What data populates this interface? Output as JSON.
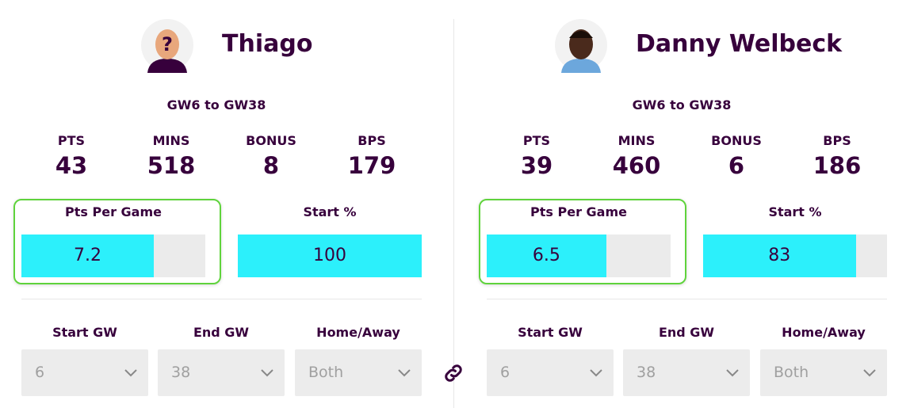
{
  "players": [
    {
      "name": "Thiago",
      "range": "GW6 to GW38",
      "stats": [
        {
          "label": "PTS",
          "value": 43
        },
        {
          "label": "MINS",
          "value": 518
        },
        {
          "label": "BONUS",
          "value": 8
        },
        {
          "label": "BPS",
          "value": 179
        }
      ],
      "bars": [
        {
          "label": "Pts Per Game",
          "value": 7.2,
          "range": [
            0,
            10
          ],
          "highlighted": true
        },
        {
          "label": "Start %",
          "value": 100,
          "range": [
            0,
            100
          ],
          "highlighted": false
        }
      ],
      "filters": [
        {
          "label": "Start GW",
          "value": 6
        },
        {
          "label": "End GW",
          "value": 38
        },
        {
          "label": "Home/Away",
          "value": "Both"
        }
      ]
    },
    {
      "name": "Danny Welbeck",
      "range": "GW6 to GW38",
      "stats": [
        {
          "label": "PTS",
          "value": 39
        },
        {
          "label": "MINS",
          "value": 460
        },
        {
          "label": "BONUS",
          "value": 6
        },
        {
          "label": "BPS",
          "value": 186
        }
      ],
      "bars": [
        {
          "label": "Pts Per Game",
          "value": 6.5,
          "range": [
            0,
            10
          ],
          "highlighted": true
        },
        {
          "label": "Start %",
          "value": 83,
          "range": [
            0,
            100
          ],
          "highlighted": false
        }
      ],
      "filters": [
        {
          "label": "Start GW",
          "value": 6
        },
        {
          "label": "End GW",
          "value": 38
        },
        {
          "label": "Home/Away",
          "value": "Both"
        }
      ]
    }
  ]
}
